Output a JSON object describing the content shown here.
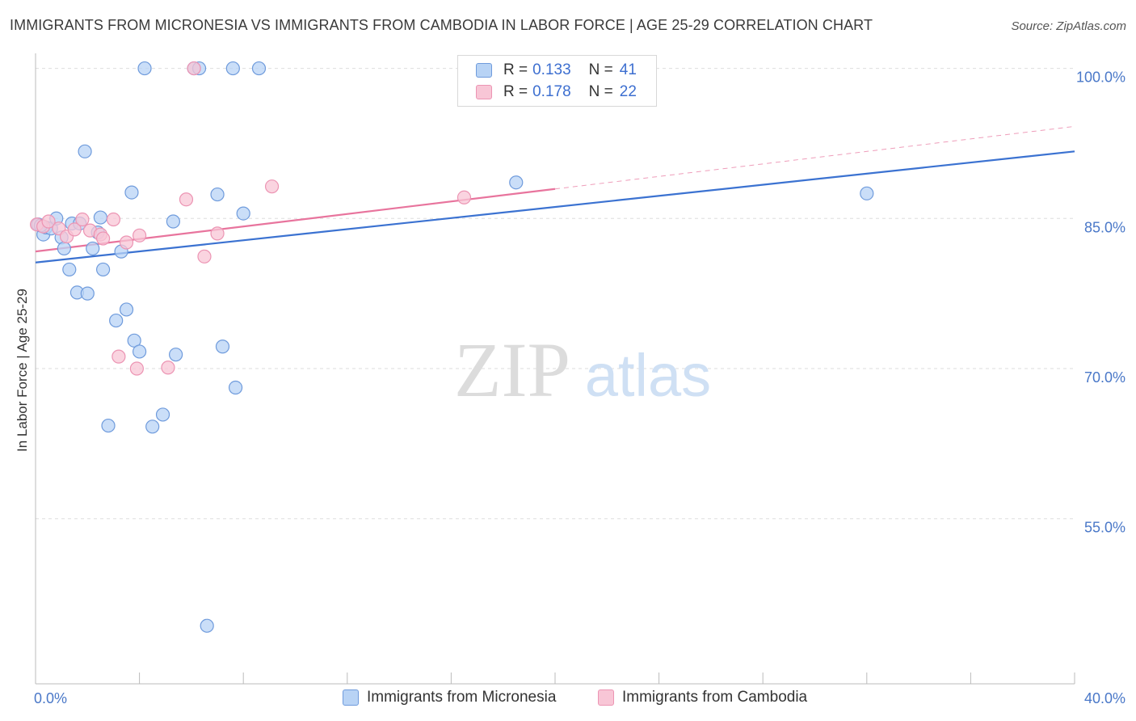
{
  "title": "IMMIGRANTS FROM MICRONESIA VS IMMIGRANTS FROM CAMBODIA IN LABOR FORCE | AGE 25-29 CORRELATION CHART",
  "source": "Source: ZipAtlas.com",
  "watermark": {
    "zip": "ZIP",
    "atlas": "atlas"
  },
  "colors": {
    "blue": "#3b72d1",
    "blue_fill": "#b8d3f5",
    "blue_edge": "#6f9bdc",
    "pink": "#e8749d",
    "pink_fill": "#f8c6d6",
    "pink_edge": "#ec94b3",
    "grid": "#dddddd",
    "tick_text": "#4a78c8"
  },
  "legend": {
    "rows": [
      {
        "series": "Immigrants from Micronesia",
        "r_label": "R =",
        "r_value": "0.133",
        "n_label": "N =",
        "n_value": "41"
      },
      {
        "series": "Immigrants from Cambodia",
        "r_label": "R =",
        "r_value": "0.178",
        "n_label": "N =",
        "n_value": "22"
      }
    ]
  },
  "chart_data": {
    "type": "scatter",
    "title": "IMMIGRANTS FROM MICRONESIA VS IMMIGRANTS FROM CAMBODIA IN LABOR FORCE | AGE 25-29 CORRELATION CHART",
    "xlabel": "",
    "ylabel": "In Labor Force | Age 25-29",
    "xlim": [
      0,
      40
    ],
    "ylim": [
      38.5,
      101.5
    ],
    "x_tick_labels": [
      {
        "value": 0,
        "label": "0.0%"
      },
      {
        "value": 40,
        "label": "40.0%"
      }
    ],
    "x_tick_marks": [
      0,
      4,
      8,
      12,
      16,
      20,
      24,
      28,
      32,
      36,
      40
    ],
    "y_ticks": [
      {
        "value": 100,
        "label": "100.0%"
      },
      {
        "value": 85,
        "label": "85.0%"
      },
      {
        "value": 70,
        "label": "70.0%"
      },
      {
        "value": 55,
        "label": "55.0%"
      }
    ],
    "grid": true,
    "legend_position": "bottom",
    "series": [
      {
        "name": "Immigrants from Micronesia",
        "color": "#3b72d1",
        "r": 0.133,
        "n": 41,
        "trend": {
          "x": [
            0,
            40
          ],
          "y": [
            80.6,
            91.7
          ]
        },
        "points": [
          {
            "x": 0.1,
            "y": 84.4
          },
          {
            "x": 0.3,
            "y": 83.4
          },
          {
            "x": 0.4,
            "y": 84.1
          },
          {
            "x": 0.6,
            "y": 84.0
          },
          {
            "x": 0.8,
            "y": 85.0
          },
          {
            "x": 1.0,
            "y": 83.1
          },
          {
            "x": 1.1,
            "y": 82.0
          },
          {
            "x": 1.3,
            "y": 79.9
          },
          {
            "x": 1.4,
            "y": 84.5
          },
          {
            "x": 1.6,
            "y": 77.6
          },
          {
            "x": 1.7,
            "y": 84.5
          },
          {
            "x": 1.9,
            "y": 91.7
          },
          {
            "x": 2.0,
            "y": 77.5
          },
          {
            "x": 2.2,
            "y": 82.0
          },
          {
            "x": 2.4,
            "y": 83.6
          },
          {
            "x": 2.5,
            "y": 85.1
          },
          {
            "x": 2.6,
            "y": 79.9
          },
          {
            "x": 2.8,
            "y": 64.3
          },
          {
            "x": 3.1,
            "y": 74.8
          },
          {
            "x": 3.3,
            "y": 81.7
          },
          {
            "x": 3.5,
            "y": 75.9
          },
          {
            "x": 3.7,
            "y": 87.6
          },
          {
            "x": 3.8,
            "y": 72.8
          },
          {
            "x": 4.0,
            "y": 71.7
          },
          {
            "x": 4.2,
            "y": 100.0
          },
          {
            "x": 4.5,
            "y": 64.2
          },
          {
            "x": 4.9,
            "y": 65.4
          },
          {
            "x": 5.3,
            "y": 84.7
          },
          {
            "x": 5.4,
            "y": 71.4
          },
          {
            "x": 6.1,
            "y": 100.0
          },
          {
            "x": 6.3,
            "y": 100.0
          },
          {
            "x": 6.6,
            "y": 44.3
          },
          {
            "x": 7.0,
            "y": 87.4
          },
          {
            "x": 7.2,
            "y": 72.2
          },
          {
            "x": 7.6,
            "y": 100.0
          },
          {
            "x": 7.7,
            "y": 68.1
          },
          {
            "x": 8.0,
            "y": 85.5
          },
          {
            "x": 8.6,
            "y": 100.0
          },
          {
            "x": 18.5,
            "y": 88.6
          },
          {
            "x": 32.0,
            "y": 87.5
          },
          {
            "x": 0.2,
            "y": 84.3
          }
        ]
      },
      {
        "name": "Immigrants from Cambodia",
        "color": "#e8749d",
        "r": 0.178,
        "n": 22,
        "trend": {
          "x": [
            0,
            40
          ],
          "y": [
            81.7,
            94.2
          ],
          "solid_until_x": 20
        },
        "points": [
          {
            "x": 0.05,
            "y": 84.4
          },
          {
            "x": 0.3,
            "y": 84.2
          },
          {
            "x": 0.5,
            "y": 84.7
          },
          {
            "x": 0.9,
            "y": 84.0
          },
          {
            "x": 1.2,
            "y": 83.2
          },
          {
            "x": 1.5,
            "y": 83.9
          },
          {
            "x": 1.8,
            "y": 84.9
          },
          {
            "x": 2.1,
            "y": 83.8
          },
          {
            "x": 2.5,
            "y": 83.4
          },
          {
            "x": 2.6,
            "y": 83.0
          },
          {
            "x": 3.0,
            "y": 84.9
          },
          {
            "x": 3.2,
            "y": 71.2
          },
          {
            "x": 3.5,
            "y": 82.6
          },
          {
            "x": 3.9,
            "y": 70.0
          },
          {
            "x": 4.0,
            "y": 83.3
          },
          {
            "x": 5.1,
            "y": 70.1
          },
          {
            "x": 5.8,
            "y": 86.9
          },
          {
            "x": 6.1,
            "y": 100.0
          },
          {
            "x": 6.5,
            "y": 81.2
          },
          {
            "x": 7.0,
            "y": 83.5
          },
          {
            "x": 9.1,
            "y": 88.2
          },
          {
            "x": 16.5,
            "y": 87.1
          }
        ]
      }
    ]
  }
}
